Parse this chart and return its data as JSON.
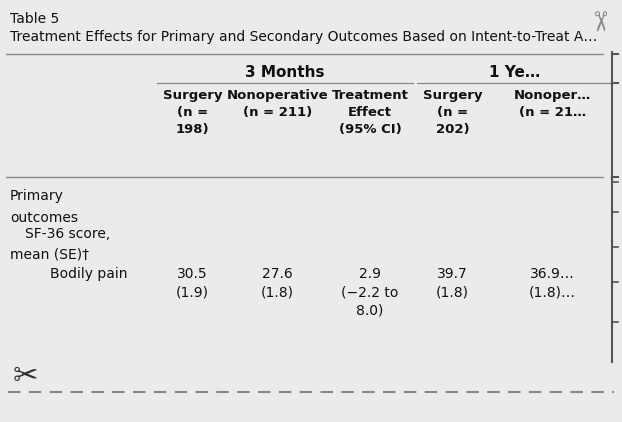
{
  "table_number": "Table 5",
  "title": "Treatment Effects for Primary and Secondary Outcomes Based on Intent-to-Treat A…",
  "period1": "3 Months",
  "period2": "1 Ye…",
  "col_headers": [
    "Surgery\n(n =\n198)",
    "Nonoperative\n(n = 211)",
    "Treatment\nEffect\n(95% CI)",
    "Surgery\n(n =\n202)",
    "Nonoper…\n(n = 21…"
  ],
  "section_label1": "Primary",
  "section_label2": "outcomes",
  "subsection_label": "SF-36 score,\nmean (SE)†",
  "row_label": "Bodily pain",
  "row_values": [
    "30.5\n(1.9)",
    "27.6\n(1.8)",
    "2.9\n(−2.2 to\n8.0)",
    "39.7\n(1.8)",
    "36.9…\n(1.8)…"
  ],
  "bg_color": "#ebebeb",
  "text_color": "#111111",
  "dashed_line_color": "#888888",
  "fig_width": 6.22,
  "fig_height": 4.22,
  "dpi": 100
}
